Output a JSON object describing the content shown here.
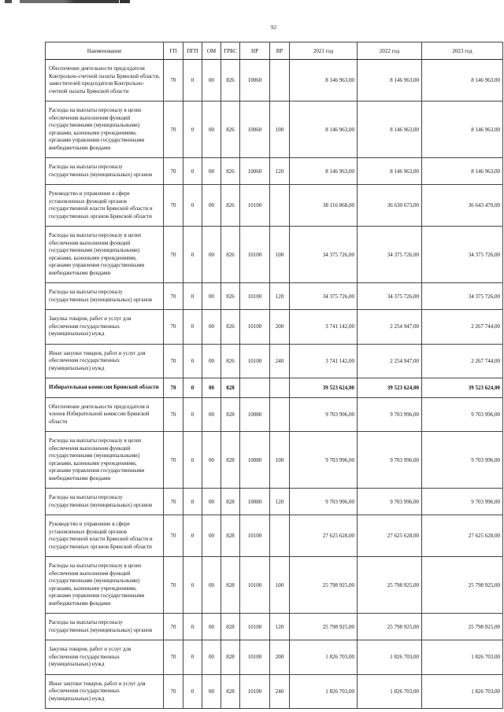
{
  "page": {
    "number": "92"
  },
  "table": {
    "columns": [
      {
        "key": "name",
        "label": "Наименование"
      },
      {
        "key": "gp",
        "label": "ГП"
      },
      {
        "key": "pgp",
        "label": "ПГП"
      },
      {
        "key": "om",
        "label": "ОМ"
      },
      {
        "key": "grbs",
        "label": "ГРБС"
      },
      {
        "key": "nr",
        "label": "НР"
      },
      {
        "key": "vr",
        "label": "ВР"
      },
      {
        "key": "y2021",
        "label": "2021 год"
      },
      {
        "key": "y2022",
        "label": "2022 год"
      },
      {
        "key": "y2023",
        "label": "2023 год"
      }
    ],
    "rows": [
      {
        "name": "Обеспечение деятельности председателя Контрольно-счетной палаты Брянской области, заместителей председателя Контрольно-счетной палаты Брянской области",
        "gp": "70",
        "pgp": "0",
        "om": "00",
        "grbs": "826",
        "nr": "10060",
        "vr": "",
        "y2021": "8 146 963,00",
        "y2022": "8 146 963,00",
        "y2023": "8 146 963,00",
        "bold": false
      },
      {
        "name": "Расходы на выплаты персоналу в целях обеспечения выполнения функций государственными (муниципальными) органами, казенными учреждениями, органами управления государственными внебюджетными фондами",
        "gp": "70",
        "pgp": "0",
        "om": "00",
        "grbs": "826",
        "nr": "10060",
        "vr": "100",
        "y2021": "8 146 963,00",
        "y2022": "8 146 963,00",
        "y2023": "8 146 963,00",
        "bold": false
      },
      {
        "name": "Расходы на выплаты персоналу государственных (муниципальных) органов",
        "gp": "70",
        "pgp": "0",
        "om": "00",
        "grbs": "826",
        "nr": "10060",
        "vr": "120",
        "y2021": "8 146 963,00",
        "y2022": "8 146 963,00",
        "y2023": "8 146 963,00",
        "bold": false
      },
      {
        "name": "Руководство и управление в сфере установленных функций органов государственной власти Брянской области и государственных органов Брянской области",
        "gp": "70",
        "pgp": "0",
        "om": "00",
        "grbs": "826",
        "nr": "10100",
        "vr": "",
        "y2021": "38 116 868,00",
        "y2022": "36 630 673,00",
        "y2023": "36 643 470,00",
        "bold": false
      },
      {
        "name": "Расходы на выплаты персоналу в целях обеспечения выполнения функций государственными (муниципальными) органами, казенными учреждениями, органами управления государственными внебюджетными фондами",
        "gp": "70",
        "pgp": "0",
        "om": "00",
        "grbs": "826",
        "nr": "10100",
        "vr": "100",
        "y2021": "34 375 726,00",
        "y2022": "34 375 726,00",
        "y2023": "34 375 726,00",
        "bold": false
      },
      {
        "name": "Расходы на выплаты персоналу государственных (муниципальных) органов",
        "gp": "70",
        "pgp": "0",
        "om": "00",
        "grbs": "826",
        "nr": "10100",
        "vr": "120",
        "y2021": "34 375 726,00",
        "y2022": "34 375 726,00",
        "y2023": "34 375 726,00",
        "bold": false
      },
      {
        "name": "Закупка товаров, работ и услуг для обеспечения государственных (муниципальных) нужд",
        "gp": "70",
        "pgp": "0",
        "om": "00",
        "grbs": "826",
        "nr": "10100",
        "vr": "200",
        "y2021": "3 741 142,00",
        "y2022": "2 254 947,00",
        "y2023": "2 267 744,00",
        "bold": false
      },
      {
        "name": "Иные закупки товаров, работ и услуг для обеспечения государственных (муниципальных) нужд",
        "gp": "70",
        "pgp": "0",
        "om": "00",
        "grbs": "826",
        "nr": "10100",
        "vr": "240",
        "y2021": "3 741 142,00",
        "y2022": "2 254 947,00",
        "y2023": "2 267 744,00",
        "bold": false
      },
      {
        "name": "Избирательная комиссия Брянской области",
        "gp": "70",
        "pgp": "0",
        "om": "00",
        "grbs": "828",
        "nr": "",
        "vr": "",
        "y2021": "39 523 624,00",
        "y2022": "39 523 624,00",
        "y2023": "39 523 624,00",
        "bold": true
      },
      {
        "name": "Обеспечение деятельности председателя и членов Избирательной комиссии Брянской области",
        "gp": "70",
        "pgp": "0",
        "om": "00",
        "grbs": "828",
        "nr": "10080",
        "vr": "",
        "y2021": "9 703 996,00",
        "y2022": "9 703 996,00",
        "y2023": "9 703 996,00",
        "bold": false
      },
      {
        "name": "Расходы на выплаты персоналу в целях обеспечения выполнения функций государственными (муниципальными) органами, казенными учреждениями, органами управления государственными внебюджетными фондами",
        "gp": "70",
        "pgp": "0",
        "om": "00",
        "grbs": "828",
        "nr": "10080",
        "vr": "100",
        "y2021": "9 703 996,00",
        "y2022": "9 703 996,00",
        "y2023": "9 703 996,00",
        "bold": false
      },
      {
        "name": "Расходы на выплаты персоналу государственных (муниципальных) органов",
        "gp": "70",
        "pgp": "0",
        "om": "00",
        "grbs": "828",
        "nr": "10080",
        "vr": "120",
        "y2021": "9 703 996,00",
        "y2022": "9 703 996,00",
        "y2023": "9 703 996,00",
        "bold": false
      },
      {
        "name": "Руководство и управление в сфере установленных функций органов государственной власти Брянской области и государственных органов Брянской области",
        "gp": "70",
        "pgp": "0",
        "om": "00",
        "grbs": "828",
        "nr": "10100",
        "vr": "",
        "y2021": "27 625 628,00",
        "y2022": "27 625 628,00",
        "y2023": "27 625 628,00",
        "bold": false
      },
      {
        "name": "Расходы на выплаты персоналу в целях обеспечения выполнения функций государственными (муниципальными) органами, казенными учреждениями, органами управления государственными внебюджетными фондами",
        "gp": "70",
        "pgp": "0",
        "om": "00",
        "grbs": "828",
        "nr": "10100",
        "vr": "100",
        "y2021": "25 798 925,00",
        "y2022": "25 798 925,00",
        "y2023": "25 798 925,00",
        "bold": false
      },
      {
        "name": "Расходы на выплаты персоналу государственных (муниципальных) органов",
        "gp": "70",
        "pgp": "0",
        "om": "00",
        "grbs": "828",
        "nr": "10100",
        "vr": "120",
        "y2021": "25 798 925,00",
        "y2022": "25 798 925,00",
        "y2023": "25 798 925,00",
        "bold": false
      },
      {
        "name": "Закупка товаров, работ и услуг для обеспечения государственных (муниципальных) нужд",
        "gp": "70",
        "pgp": "0",
        "om": "00",
        "grbs": "828",
        "nr": "10100",
        "vr": "200",
        "y2021": "1 826 703,00",
        "y2022": "1 826 703,00",
        "y2023": "1 826 703,00",
        "bold": false
      },
      {
        "name": "Иные закупки товаров, работ и услуг для обеспечения государственных (муниципальных) нужд",
        "gp": "70",
        "pgp": "0",
        "om": "00",
        "grbs": "828",
        "nr": "10100",
        "vr": "240",
        "y2021": "1 826 703,00",
        "y2022": "1 826 703,00",
        "y2023": "1 826 703,00",
        "bold": false
      }
    ]
  }
}
